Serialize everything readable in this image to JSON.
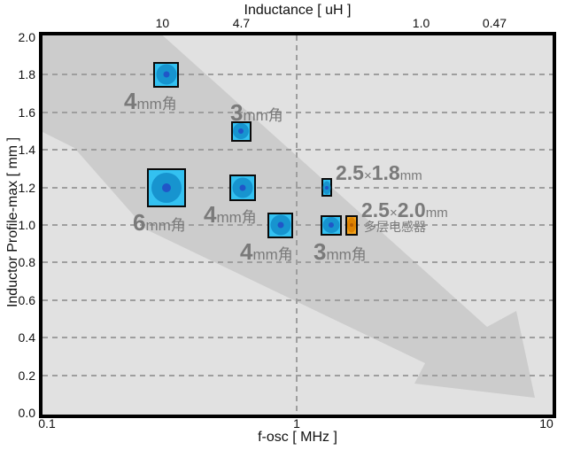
{
  "colors": {
    "plot_bg": "#e1e1e1",
    "trend_arrow": "#cccccc",
    "grid": "#9e9e9e",
    "wound_fill": "#33c1f1",
    "wound_inner": "#1794cf",
    "wound_dot": "#2056c8",
    "chip_blue_fill": "#33c1f1",
    "chip_blue_inner": "#1794cf",
    "chip_blue_dot": "#2056c8",
    "chip_orange_fill": "#f2a31c",
    "chip_orange_inner": "#dd8200",
    "chip_orange_dot": "#b85e00",
    "label_gray": "#7a7a7a",
    "axis_border": "#000000"
  },
  "chart_data": {
    "type": "scatter",
    "top_axis_label": "Inductance [ uH ]",
    "xlabel": "f-osc [ MHz ]",
    "ylabel": "Inductor Profile-max [ mm ]",
    "x_scale": "log",
    "xlim": [
      0.1,
      10
    ],
    "ylim": [
      0.0,
      2.0
    ],
    "grid": {
      "horizontal_step": 0.2,
      "vertical_lines_at_mhz": [
        1
      ],
      "style": "dashed"
    },
    "trend_arrow_direction": "down-right",
    "top_ticks": [
      {
        "label": "10",
        "f_osc_mhz": 0.29
      },
      {
        "label": "4.7",
        "f_osc_mhz": 0.6
      },
      {
        "label": "1.0",
        "f_osc_mhz": 3.15
      },
      {
        "label": "0.47",
        "f_osc_mhz": 6.2
      }
    ],
    "x_ticks": [
      {
        "label": "0.1",
        "value": 0.1
      },
      {
        "label": "1",
        "value": 1
      },
      {
        "label": "10",
        "value": 10
      }
    ],
    "y_ticks": [
      {
        "label": "2.0",
        "value": 2.0
      },
      {
        "label": "1.8",
        "value": 1.8
      },
      {
        "label": "1.6",
        "value": 1.6
      },
      {
        "label": "1.4",
        "value": 1.4
      },
      {
        "label": "1.2",
        "value": 1.2
      },
      {
        "label": "1.0",
        "value": 1.0
      },
      {
        "label": "0.8",
        "value": 0.8
      },
      {
        "label": "0.6",
        "value": 0.6
      },
      {
        "label": "0.4",
        "value": 0.4
      },
      {
        "label": "0.2",
        "value": 0.2
      },
      {
        "label": "0.0",
        "value": 0.0
      }
    ],
    "points": [
      {
        "id": "p1",
        "name": "4mm角",
        "f_osc_mhz": 0.3,
        "profile_mm": 1.8,
        "style": "wound-blue",
        "label_parts": [
          {
            "t": "4",
            "big": true
          },
          {
            "t": "mm角",
            "big": false
          }
        ]
      },
      {
        "id": "p2",
        "name": "3mm角",
        "f_osc_mhz": 0.6,
        "profile_mm": 1.5,
        "style": "wound-blue",
        "label_parts": [
          {
            "t": "3",
            "big": true
          },
          {
            "t": "mm角",
            "big": false
          }
        ]
      },
      {
        "id": "p3",
        "name": "6mm角",
        "f_osc_mhz": 0.3,
        "profile_mm": 1.2,
        "style": "wound-blue",
        "label_parts": [
          {
            "t": "6",
            "big": true
          },
          {
            "t": "mm角",
            "big": false
          }
        ]
      },
      {
        "id": "p4",
        "name": "4mm角",
        "f_osc_mhz": 0.61,
        "profile_mm": 1.2,
        "style": "wound-blue",
        "label_parts": [
          {
            "t": "4",
            "big": true
          },
          {
            "t": "mm角",
            "big": false
          }
        ]
      },
      {
        "id": "p5",
        "name": "4mm角",
        "f_osc_mhz": 0.86,
        "profile_mm": 1.0,
        "style": "wound-blue",
        "label_parts": [
          {
            "t": "4",
            "big": true
          },
          {
            "t": "mm角",
            "big": false
          }
        ]
      },
      {
        "id": "p6",
        "name": "3mm角",
        "f_osc_mhz": 1.37,
        "profile_mm": 1.0,
        "style": "wound-blue",
        "label_parts": [
          {
            "t": "3",
            "big": true
          },
          {
            "t": "mm角",
            "big": false
          }
        ]
      },
      {
        "id": "p7",
        "name": "2.5×1.8mm",
        "f_osc_mhz": 1.32,
        "profile_mm": 1.2,
        "style": "chip-blue",
        "label_parts": [
          {
            "t": "2.5",
            "big": true
          },
          {
            "t": "×",
            "big": false
          },
          {
            "t": "1.8",
            "big": true
          },
          {
            "t": "mm",
            "big": false
          }
        ]
      },
      {
        "id": "p8",
        "name": "2.5×2.0mm",
        "f_osc_mhz": 1.66,
        "profile_mm": 1.0,
        "style": "chip-orange",
        "label_parts": [
          {
            "t": "2.5",
            "big": true
          },
          {
            "t": "×",
            "big": false
          },
          {
            "t": "2.0",
            "big": true
          },
          {
            "t": "mm",
            "big": false
          }
        ],
        "sub_label": "多层电感器"
      }
    ]
  }
}
